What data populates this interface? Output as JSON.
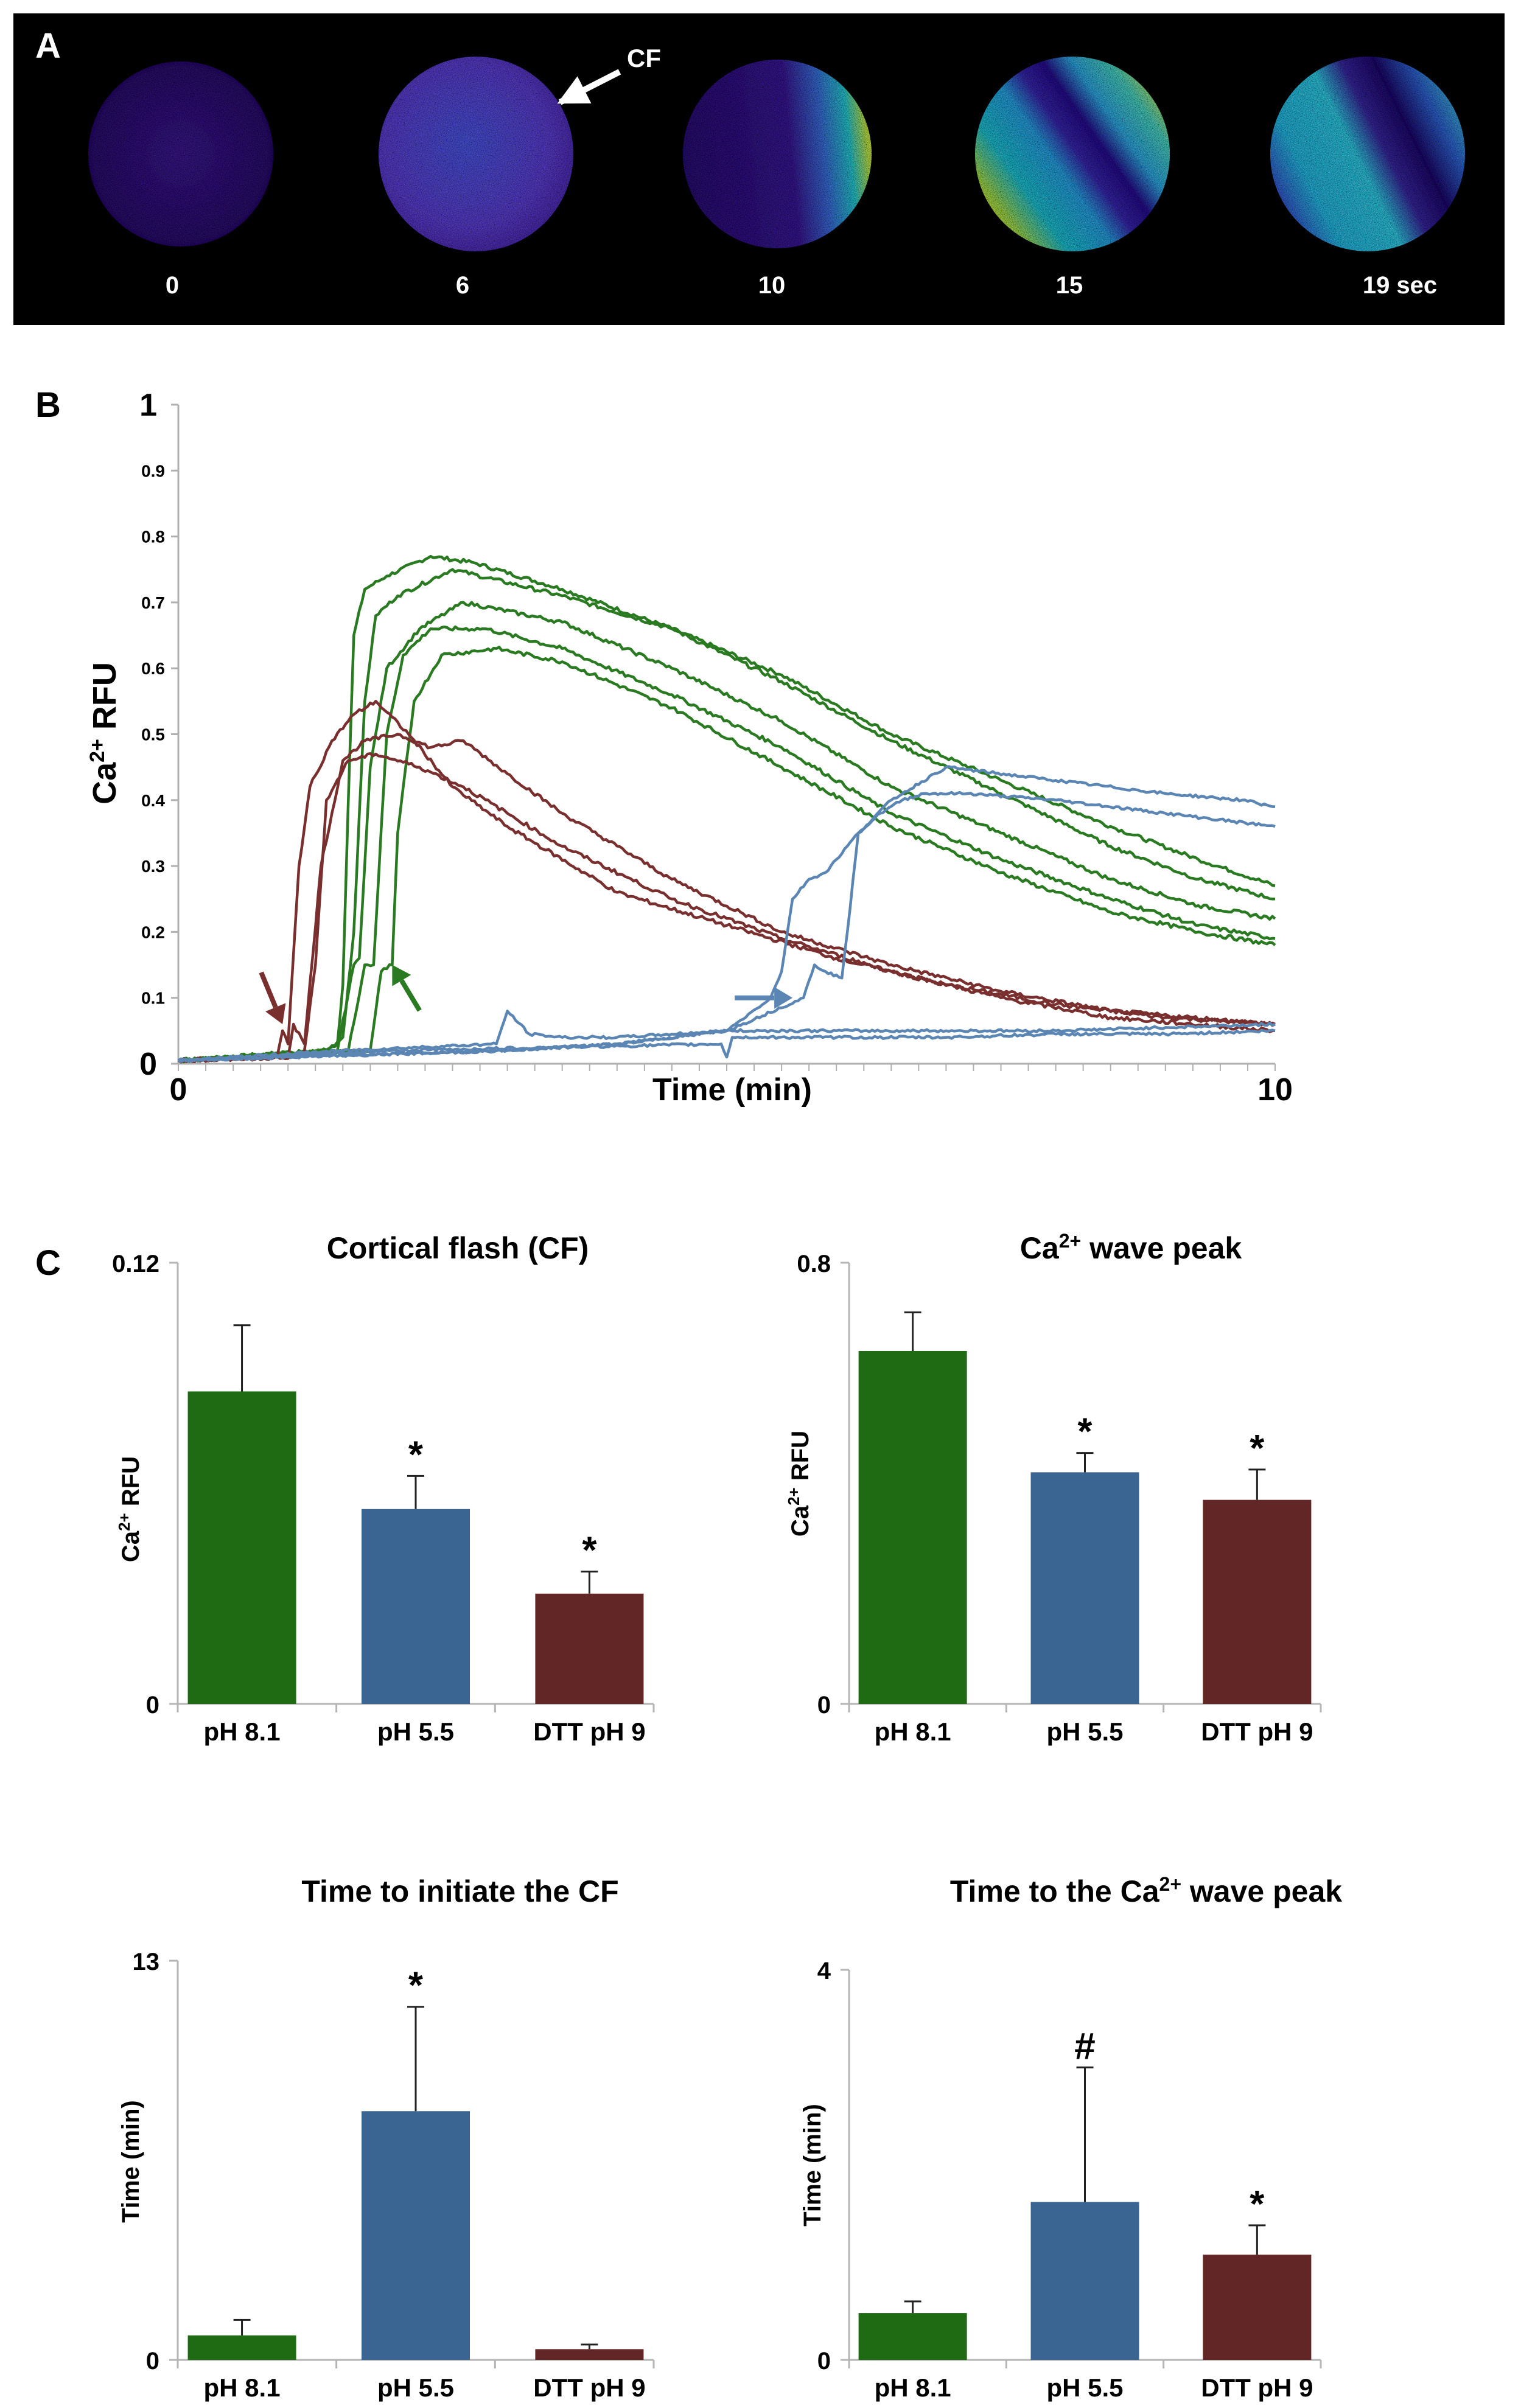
{
  "panels": {
    "A": {
      "label": "A",
      "callout": "CF",
      "time_labels": [
        "0",
        "6",
        "10",
        "15",
        "19 sec"
      ]
    },
    "B": {
      "label": "B",
      "ylabel_main": "Ca",
      "ylabel_sup": "2+",
      "ylabel_tail": " RFU",
      "xlabel": "Time (min)"
    },
    "C": {
      "label": "C"
    }
  },
  "colors": {
    "green": "#1e6b13",
    "blue": "#3a6592",
    "maroon": "#632626",
    "trace_green": "#2a7a22",
    "trace_blue": "#5b86b4",
    "trace_maroon": "#7a2f2f"
  },
  "chart_data": [
    {
      "id": "traces",
      "type": "line",
      "title": "",
      "xlabel": "Time (min)",
      "ylabel": "Ca2+ RFU",
      "xlim": [
        0,
        10
      ],
      "ylim": [
        0,
        1
      ],
      "x_ticks": [
        "0",
        "10"
      ],
      "y_ticks": [
        {
          "v": 0,
          "label": "0",
          "major": true
        },
        {
          "v": 0.1,
          "label": "0.1"
        },
        {
          "v": 0.2,
          "label": "0.2"
        },
        {
          "v": 0.3,
          "label": "0.3"
        },
        {
          "v": 0.4,
          "label": "0.4"
        },
        {
          "v": 0.5,
          "label": "0.5"
        },
        {
          "v": 0.6,
          "label": "0.6"
        },
        {
          "v": 0.7,
          "label": "0.7"
        },
        {
          "v": 0.8,
          "label": "0.8"
        },
        {
          "v": 0.9,
          "label": "0.9"
        },
        {
          "v": 1,
          "label": "1",
          "major": true
        }
      ],
      "series": [
        {
          "name": "pH 8.1 trace 1",
          "group": "green",
          "x": [
            0,
            1.3,
            1.45,
            1.5,
            1.55,
            1.6,
            1.7,
            1.9,
            2.3,
            2.7,
            3.5,
            4.5,
            5.5,
            6.5,
            7.5,
            8.5,
            9.3,
            10
          ],
          "y": [
            0.005,
            0.02,
            0.03,
            0.12,
            0.4,
            0.65,
            0.72,
            0.74,
            0.77,
            0.76,
            0.72,
            0.66,
            0.59,
            0.5,
            0.43,
            0.36,
            0.31,
            0.27
          ]
        },
        {
          "name": "pH 8.1 trace 2",
          "group": "green",
          "x": [
            0,
            1.35,
            1.5,
            1.6,
            1.7,
            1.8,
            2.0,
            2.5,
            3.5,
            4.5,
            5.5,
            6.5,
            7.5,
            8.5,
            9.3,
            10
          ],
          "y": [
            0.005,
            0.02,
            0.04,
            0.2,
            0.55,
            0.68,
            0.71,
            0.75,
            0.71,
            0.66,
            0.58,
            0.49,
            0.41,
            0.33,
            0.28,
            0.25
          ]
        },
        {
          "name": "pH 8.1 trace 3",
          "group": "green",
          "x": [
            0,
            1.45,
            1.6,
            1.65,
            1.75,
            1.9,
            2.2,
            2.6,
            3.5,
            4.5,
            5.5,
            6.5,
            7.5,
            8.5,
            9.3,
            10
          ],
          "y": [
            0.005,
            0.02,
            0.15,
            0.16,
            0.45,
            0.6,
            0.66,
            0.7,
            0.67,
            0.6,
            0.52,
            0.42,
            0.35,
            0.28,
            0.24,
            0.22
          ]
        },
        {
          "name": "pH 8.1 trace 4",
          "group": "green",
          "x": [
            0,
            1.55,
            1.7,
            1.78,
            1.9,
            2.05,
            2.3,
            2.8,
            3.5,
            4.5,
            5.5,
            6.5,
            7.5,
            8.5,
            9.3,
            10
          ],
          "y": [
            0.005,
            0.02,
            0.15,
            0.15,
            0.5,
            0.62,
            0.66,
            0.66,
            0.63,
            0.56,
            0.48,
            0.38,
            0.31,
            0.25,
            0.21,
            0.19
          ]
        },
        {
          "name": "pH 8.1 trace 5",
          "group": "green",
          "x": [
            0,
            1.75,
            1.85,
            1.95,
            2.0,
            2.15,
            2.4,
            2.9,
            3.5,
            4.5,
            5.5,
            6.5,
            7.5,
            8.5,
            9.3,
            10
          ],
          "y": [
            0.005,
            0.02,
            0.14,
            0.15,
            0.35,
            0.55,
            0.62,
            0.63,
            0.61,
            0.54,
            0.45,
            0.36,
            0.29,
            0.23,
            0.2,
            0.18
          ]
        },
        {
          "name": "DTT pH 9 trace 1",
          "group": "maroon",
          "x": [
            0,
            0.9,
            0.95,
            1.0,
            1.1,
            1.2,
            1.4,
            1.6,
            1.8,
            2.1,
            2.5,
            3.0,
            4.0,
            5.0,
            6.0,
            7.0,
            8.0,
            9.0,
            10
          ],
          "y": [
            0.005,
            0.01,
            0.05,
            0.03,
            0.3,
            0.42,
            0.49,
            0.53,
            0.55,
            0.5,
            0.42,
            0.36,
            0.26,
            0.21,
            0.16,
            0.12,
            0.09,
            0.07,
            0.06
          ]
        },
        {
          "name": "DTT pH 9 trace 2",
          "group": "maroon",
          "x": [
            0,
            1.0,
            1.05,
            1.15,
            1.3,
            1.5,
            1.7,
            2.0,
            2.3,
            2.6,
            3.0,
            3.5,
            4.5,
            5.5,
            6.5,
            7.5,
            8.5,
            10
          ],
          "y": [
            0.005,
            0.01,
            0.06,
            0.03,
            0.3,
            0.46,
            0.49,
            0.5,
            0.48,
            0.49,
            0.44,
            0.38,
            0.28,
            0.2,
            0.15,
            0.11,
            0.08,
            0.06
          ]
        },
        {
          "name": "DTT pH 9 trace 3",
          "group": "maroon",
          "x": [
            0,
            1.05,
            1.15,
            1.25,
            1.35,
            1.55,
            1.8,
            2.2,
            2.6,
            3.0,
            3.5,
            4.5,
            5.5,
            6.5,
            7.5,
            8.5,
            10
          ],
          "y": [
            0.005,
            0.01,
            0.02,
            0.15,
            0.4,
            0.46,
            0.47,
            0.45,
            0.42,
            0.38,
            0.33,
            0.25,
            0.19,
            0.14,
            0.1,
            0.07,
            0.05
          ]
        },
        {
          "name": "pH 5.5 trace 1",
          "group": "blue",
          "x": [
            0,
            3.0,
            4.0,
            5.0,
            5.4,
            5.5,
            5.6,
            5.75,
            5.9,
            6.0,
            6.2,
            6.5,
            7.0,
            8.0,
            9.0,
            9.7,
            10
          ],
          "y": [
            0.005,
            0.02,
            0.03,
            0.05,
            0.1,
            0.14,
            0.25,
            0.28,
            0.29,
            0.31,
            0.35,
            0.4,
            0.45,
            0.43,
            0.41,
            0.4,
            0.39
          ]
        },
        {
          "name": "pH 5.5 trace 2",
          "group": "blue",
          "x": [
            0,
            3.0,
            4.0,
            5.0,
            5.7,
            5.8,
            5.9,
            6.05,
            6.1,
            6.2,
            6.4,
            6.6,
            6.8,
            7.2,
            8.0,
            9.0,
            10
          ],
          "y": [
            0.005,
            0.02,
            0.03,
            0.05,
            0.1,
            0.15,
            0.14,
            0.13,
            0.2,
            0.35,
            0.38,
            0.4,
            0.41,
            0.41,
            0.4,
            0.38,
            0.36
          ]
        },
        {
          "name": "pH 5.5 trace 3",
          "group": "blue",
          "x": [
            0,
            1.5,
            2.9,
            3.0,
            3.2,
            3.5,
            4.0,
            5.0,
            6.0,
            7.0,
            8.0,
            9.0,
            10
          ],
          "y": [
            0.005,
            0.02,
            0.03,
            0.08,
            0.045,
            0.04,
            0.04,
            0.05,
            0.05,
            0.05,
            0.05,
            0.055,
            0.06
          ]
        },
        {
          "name": "pH 5.5 trace 4",
          "group": "blue",
          "x": [
            0,
            2.0,
            4.95,
            5.0,
            5.05,
            6.0,
            7.0,
            8.0,
            9.0,
            10
          ],
          "y": [
            0.005,
            0.02,
            0.03,
            0.01,
            0.04,
            0.04,
            0.04,
            0.045,
            0.045,
            0.05
          ]
        }
      ],
      "annotations": [
        {
          "type": "arrow",
          "group": "maroon",
          "target_x": 0.95,
          "target_y": 0.06
        },
        {
          "type": "arrow",
          "group": "green",
          "target_x": 1.95,
          "target_y": 0.15
        },
        {
          "type": "arrow",
          "group": "blue",
          "target_x": 5.6,
          "target_y": 0.1
        }
      ]
    },
    {
      "id": "cf",
      "type": "bar",
      "title": "Cortical flash (CF)",
      "title_sup": "",
      "title_tail": "",
      "ylabel": "Ca2+ RFU",
      "ylabel_main": "Ca",
      "ylabel_sup": "2+",
      "ylabel_tail": " RFU",
      "ylim": [
        0,
        0.12
      ],
      "y_tick_labels": [
        "0",
        "0.12"
      ],
      "categories": [
        "pH 8.1",
        "pH 5.5",
        "DTT pH 9"
      ],
      "values": [
        0.085,
        0.053,
        0.03
      ],
      "errors": [
        0.018,
        0.009,
        0.006
      ],
      "marks": [
        "",
        "*",
        "*"
      ]
    },
    {
      "id": "wave",
      "type": "bar",
      "title": "Ca",
      "title_sup": "2+",
      "title_tail": " wave peak",
      "ylabel": "Ca2+ RFU",
      "ylabel_main": "Ca",
      "ylabel_sup": "2+",
      "ylabel_tail": " RFU",
      "ylim": [
        0,
        0.8
      ],
      "y_tick_labels": [
        "0",
        "0.8"
      ],
      "categories": [
        "pH 8.1",
        "pH 5.5",
        "DTT pH 9"
      ],
      "values": [
        0.64,
        0.42,
        0.37
      ],
      "errors": [
        0.07,
        0.035,
        0.055
      ],
      "marks": [
        "",
        "*",
        "*"
      ]
    },
    {
      "id": "time-cf",
      "type": "bar",
      "title": "Time to initiate the CF",
      "title_sup": "",
      "title_tail": "",
      "ylabel": "Time (min)",
      "ylabel_main": "Time (min)",
      "ylabel_sup": "",
      "ylabel_tail": "",
      "ylim": [
        0,
        13
      ],
      "y_tick_labels": [
        "0",
        "13"
      ],
      "categories": [
        "pH 8.1",
        "pH 5.5",
        "DTT pH 9"
      ],
      "values": [
        0.8,
        8.1,
        0.35
      ],
      "errors": [
        0.5,
        3.4,
        0.15
      ],
      "marks": [
        "",
        "*",
        ""
      ]
    },
    {
      "id": "time-wave",
      "type": "bar",
      "title": "Time to the Ca",
      "title_sup": "2+",
      "title_tail": " wave peak",
      "ylabel": "Time (min)",
      "ylabel_main": "Time (min)",
      "ylabel_sup": "",
      "ylabel_tail": "",
      "ylim": [
        0,
        4
      ],
      "y_tick_labels": [
        "0",
        "4"
      ],
      "categories": [
        "pH 8.1",
        "pH 5.5",
        "DTT pH 9"
      ],
      "values": [
        0.48,
        1.62,
        1.08
      ],
      "errors": [
        0.12,
        1.38,
        0.3
      ],
      "marks": [
        "",
        "#",
        "*"
      ]
    }
  ]
}
